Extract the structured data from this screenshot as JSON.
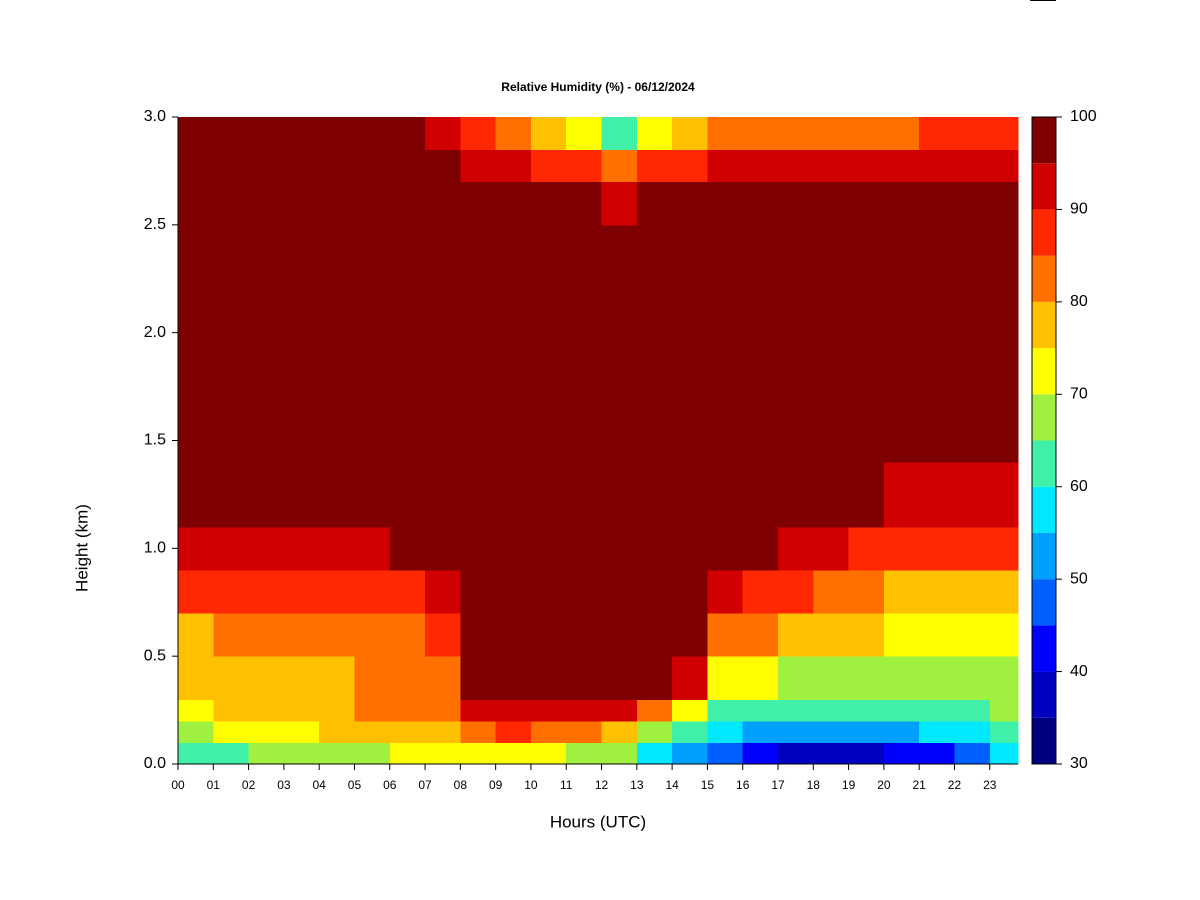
{
  "chart_data": {
    "type": "contour",
    "title": "Relative Humidity (%) - 06/12/2024",
    "x_label": "Hours (UTC)",
    "y_label": "Height (km)",
    "xlim": [
      0,
      23.8
    ],
    "ylim": [
      0,
      3
    ],
    "xticks": [
      {
        "value": 0,
        "label": "00"
      },
      {
        "value": 1,
        "label": "01"
      },
      {
        "value": 2,
        "label": "02"
      },
      {
        "value": 3,
        "label": "03"
      },
      {
        "value": 4,
        "label": "04"
      },
      {
        "value": 5,
        "label": "05"
      },
      {
        "value": 6,
        "label": "06"
      },
      {
        "value": 7,
        "label": "07"
      },
      {
        "value": 8,
        "label": "08"
      },
      {
        "value": 9,
        "label": "09"
      },
      10,
      11,
      12,
      13,
      14,
      15,
      16,
      17,
      18,
      19,
      20,
      21,
      22,
      23
    ],
    "yticks": [
      {
        "value": 0,
        "label": "0.0"
      },
      0.5,
      {
        "value": 1,
        "label": "1.0"
      },
      1.5,
      {
        "value": 2,
        "label": "2.0"
      },
      2.5,
      {
        "value": 3,
        "label": "3.0"
      }
    ],
    "x": [
      0,
      1,
      2,
      3,
      4,
      5,
      6,
      7,
      8,
      9,
      10,
      11,
      12,
      13,
      14,
      15,
      16,
      17,
      18,
      19,
      20,
      21,
      22,
      23
    ],
    "y": [
      0,
      0.1,
      0.2,
      0.3,
      0.5,
      0.7,
      0.9,
      1.1,
      1.4,
      2.5,
      2.7,
      2.85
    ],
    "z": [
      [
        60,
        62,
        65,
        65,
        67,
        68,
        70,
        70,
        72,
        72,
        70,
        68,
        65,
        58,
        50,
        45,
        40,
        38,
        38,
        38,
        40,
        42,
        45,
        55
      ],
      [
        68,
        72,
        72,
        73,
        75,
        75,
        76,
        78,
        82,
        85,
        82,
        80,
        75,
        68,
        60,
        55,
        50,
        50,
        50,
        52,
        52,
        55,
        58,
        62
      ],
      [
        72,
        76,
        77,
        78,
        78,
        80,
        80,
        80,
        90,
        92,
        90,
        92,
        90,
        82,
        70,
        62,
        60,
        60,
        60,
        62,
        60,
        62,
        62,
        65
      ],
      [
        75,
        78,
        78,
        78,
        78,
        80,
        82,
        82,
        96,
        96,
        97,
        97,
        98,
        97,
        90,
        72,
        70,
        68,
        68,
        68,
        65,
        65,
        65,
        68
      ],
      [
        78,
        80,
        80,
        80,
        80,
        82,
        84,
        85,
        96,
        97,
        98,
        98,
        98,
        98,
        96,
        84,
        80,
        75,
        75,
        75,
        70,
        70,
        70,
        72
      ],
      [
        85,
        87,
        86,
        87,
        86,
        87,
        88,
        90,
        97,
        98,
        98,
        98,
        98,
        98,
        98,
        92,
        88,
        85,
        82,
        80,
        78,
        76,
        76,
        78
      ],
      [
        92,
        93,
        93,
        93,
        93,
        94,
        95,
        96,
        98,
        98,
        98,
        98,
        98,
        98,
        98,
        97,
        95,
        93,
        90,
        88,
        85,
        85,
        86,
        88
      ],
      [
        96,
        97,
        98,
        98,
        98,
        98,
        98,
        98,
        98,
        98,
        98,
        98,
        98,
        98,
        98,
        98,
        98,
        98,
        96,
        95,
        92,
        90,
        92,
        94
      ],
      [
        98,
        98,
        98,
        98,
        98,
        98,
        98,
        98,
        98,
        98,
        98,
        98,
        98,
        98,
        98,
        98,
        98,
        98,
        98,
        98,
        98,
        98,
        98,
        98
      ],
      [
        98,
        98,
        98,
        98,
        98,
        98,
        98,
        98,
        98,
        98,
        98,
        96,
        94,
        95,
        97,
        96,
        96,
        96,
        96,
        97,
        97,
        97,
        97,
        97
      ],
      [
        98,
        98,
        98,
        98,
        98,
        98,
        97,
        96,
        92,
        90,
        88,
        86,
        82,
        86,
        88,
        90,
        90,
        90,
        90,
        90,
        92,
        92,
        92,
        93
      ],
      [
        98,
        98,
        98,
        98,
        98,
        96,
        95,
        92,
        85,
        80,
        75,
        70,
        60,
        70,
        78,
        82,
        84,
        84,
        82,
        82,
        84,
        86,
        86,
        88
      ]
    ],
    "colorbar": {
      "levels": [
        30,
        35,
        40,
        45,
        50,
        55,
        60,
        65,
        70,
        75,
        80,
        85,
        90,
        95,
        100
      ],
      "colors": [
        "#00007f",
        "#0000bf",
        "#0000ff",
        "#0060ff",
        "#00a0ff",
        "#00e8ff",
        "#40f0a8",
        "#a0f040",
        "#ffff00",
        "#ffc000",
        "#ff7000",
        "#ff2800",
        "#d00000",
        "#7f0000"
      ],
      "ticks": [
        30,
        40,
        50,
        60,
        70,
        80,
        90,
        100
      ]
    }
  }
}
